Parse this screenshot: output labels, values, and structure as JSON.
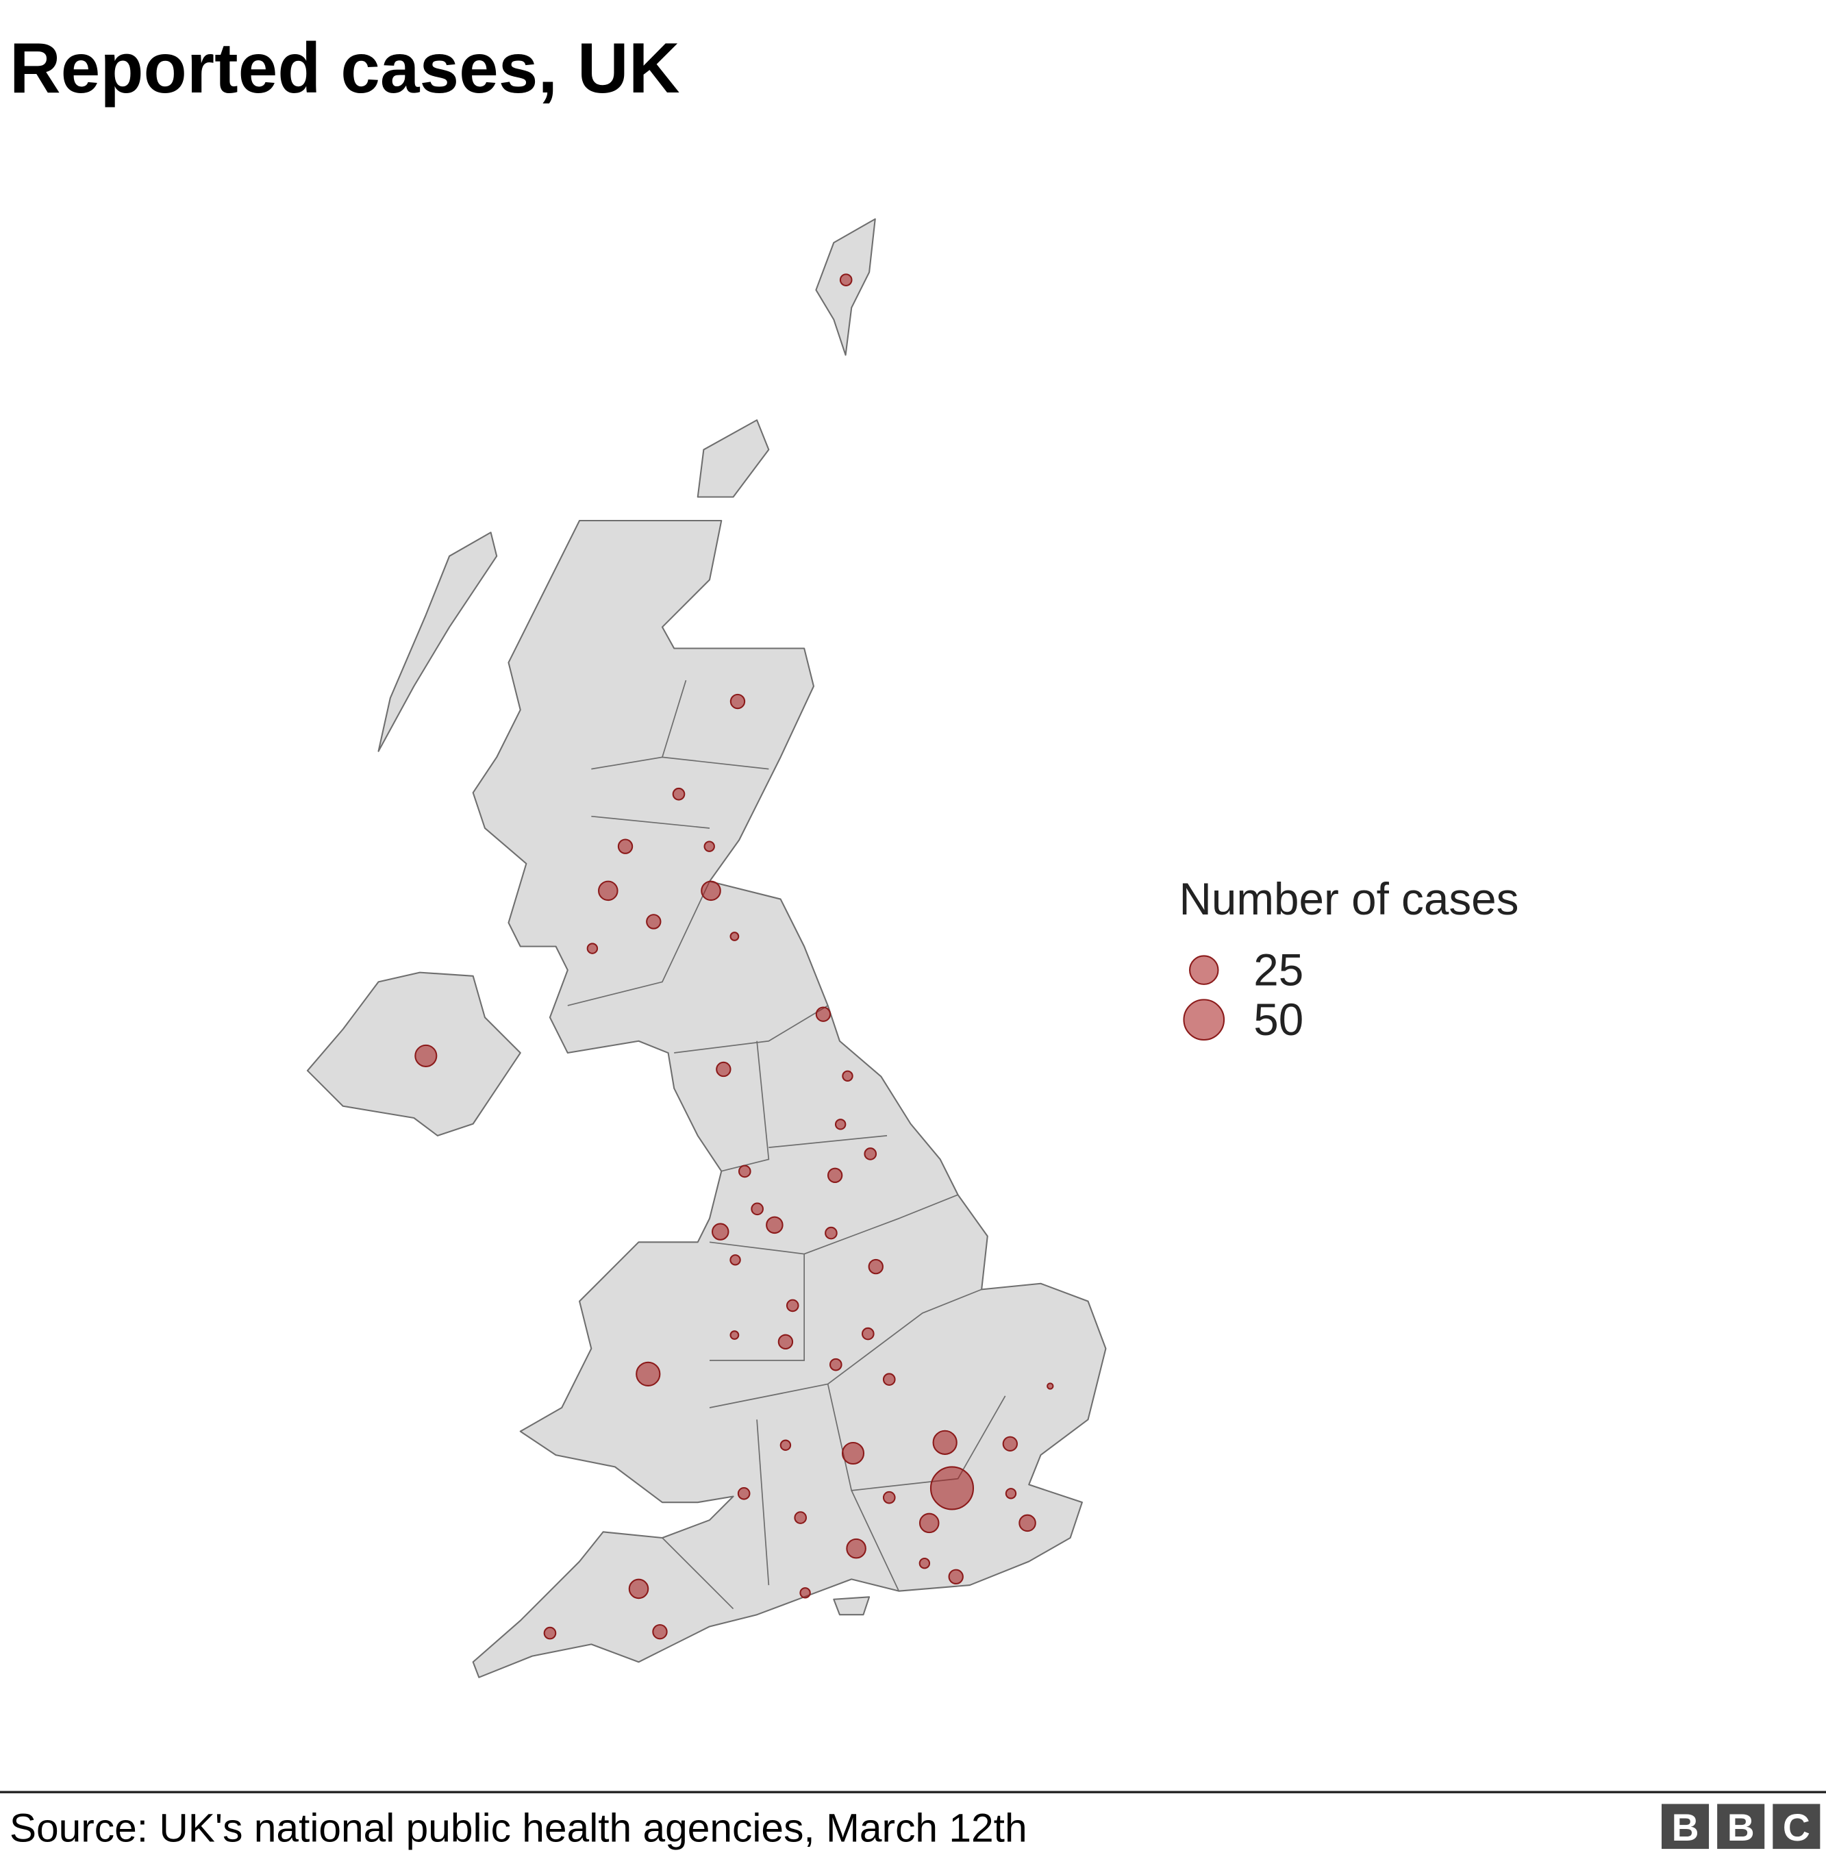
{
  "title": "Reported cases, UK",
  "legend": {
    "title": "Number of cases",
    "items": [
      25,
      50
    ]
  },
  "source": "Source: UK's national public health agencies, March 12th",
  "logo": [
    "B",
    "B",
    "C"
  ],
  "map": {
    "type": "bubble-map",
    "color": "#a51c1c",
    "points": [
      {
        "lon": -1.47,
        "lat": 60.5,
        "cases": 4
      },
      {
        "lon": -2.85,
        "lat": 57.36,
        "cases": 6
      },
      {
        "lon": -3.6,
        "lat": 56.67,
        "cases": 4
      },
      {
        "lon": -4.28,
        "lat": 56.28,
        "cases": 6
      },
      {
        "lon": -3.21,
        "lat": 56.28,
        "cases": 3
      },
      {
        "lon": -4.5,
        "lat": 55.95,
        "cases": 11
      },
      {
        "lon": -3.19,
        "lat": 55.95,
        "cases": 11
      },
      {
        "lon": -3.92,
        "lat": 55.72,
        "cases": 6
      },
      {
        "lon": -4.7,
        "lat": 55.52,
        "cases": 3
      },
      {
        "lon": -2.89,
        "lat": 55.61,
        "cases": 2
      },
      {
        "lon": -6.82,
        "lat": 54.72,
        "cases": 14
      },
      {
        "lon": -1.76,
        "lat": 55.03,
        "cases": 6
      },
      {
        "lon": -3.03,
        "lat": 54.62,
        "cases": 6
      },
      {
        "lon": -1.45,
        "lat": 54.57,
        "cases": 3
      },
      {
        "lon": -1.54,
        "lat": 54.21,
        "cases": 3
      },
      {
        "lon": -1.16,
        "lat": 53.99,
        "cases": 4
      },
      {
        "lon": -2.76,
        "lat": 53.86,
        "cases": 4
      },
      {
        "lon": -1.61,
        "lat": 53.83,
        "cases": 6
      },
      {
        "lon": -2.38,
        "lat": 53.46,
        "cases": 8
      },
      {
        "lon": -3.07,
        "lat": 53.41,
        "cases": 8
      },
      {
        "lon": -2.6,
        "lat": 53.58,
        "cases": 4
      },
      {
        "lon": -1.66,
        "lat": 53.4,
        "cases": 4
      },
      {
        "lon": -1.09,
        "lat": 53.15,
        "cases": 6
      },
      {
        "lon": -2.88,
        "lat": 53.2,
        "cases": 3
      },
      {
        "lon": -2.15,
        "lat": 52.86,
        "cases": 4
      },
      {
        "lon": -1.19,
        "lat": 52.65,
        "cases": 4
      },
      {
        "lon": -3.99,
        "lat": 52.35,
        "cases": 17
      },
      {
        "lon": -2.24,
        "lat": 52.59,
        "cases": 6
      },
      {
        "lon": -2.89,
        "lat": 52.64,
        "cases": 2
      },
      {
        "lon": -1.6,
        "lat": 52.42,
        "cases": 4
      },
      {
        "lon": -0.92,
        "lat": 52.31,
        "cases": 4
      },
      {
        "lon": -0.21,
        "lat": 51.84,
        "cases": 17
      },
      {
        "lon": 0.62,
        "lat": 51.83,
        "cases": 6
      },
      {
        "lon": 1.13,
        "lat": 52.26,
        "cases": 1
      },
      {
        "lon": -1.38,
        "lat": 51.76,
        "cases": 14
      },
      {
        "lon": -2.24,
        "lat": 51.82,
        "cases": 3
      },
      {
        "lon": -0.12,
        "lat": 51.5,
        "cases": 56
      },
      {
        "lon": 0.84,
        "lat": 51.24,
        "cases": 8
      },
      {
        "lon": -0.41,
        "lat": 51.24,
        "cases": 11
      },
      {
        "lon": -1.34,
        "lat": 51.05,
        "cases": 11
      },
      {
        "lon": -2.05,
        "lat": 51.28,
        "cases": 4
      },
      {
        "lon": -0.07,
        "lat": 50.84,
        "cases": 6
      },
      {
        "lon": -0.47,
        "lat": 50.94,
        "cases": 3
      },
      {
        "lon": -4.11,
        "lat": 50.75,
        "cases": 11
      },
      {
        "lon": -3.84,
        "lat": 50.43,
        "cases": 6
      },
      {
        "lon": -5.24,
        "lat": 50.42,
        "cases": 4
      },
      {
        "lon": -2.77,
        "lat": 51.46,
        "cases": 4
      },
      {
        "lon": -1.99,
        "lat": 50.72,
        "cases": 3
      },
      {
        "lon": -0.92,
        "lat": 51.43,
        "cases": 4
      },
      {
        "lon": 0.63,
        "lat": 51.46,
        "cases": 3
      }
    ]
  }
}
